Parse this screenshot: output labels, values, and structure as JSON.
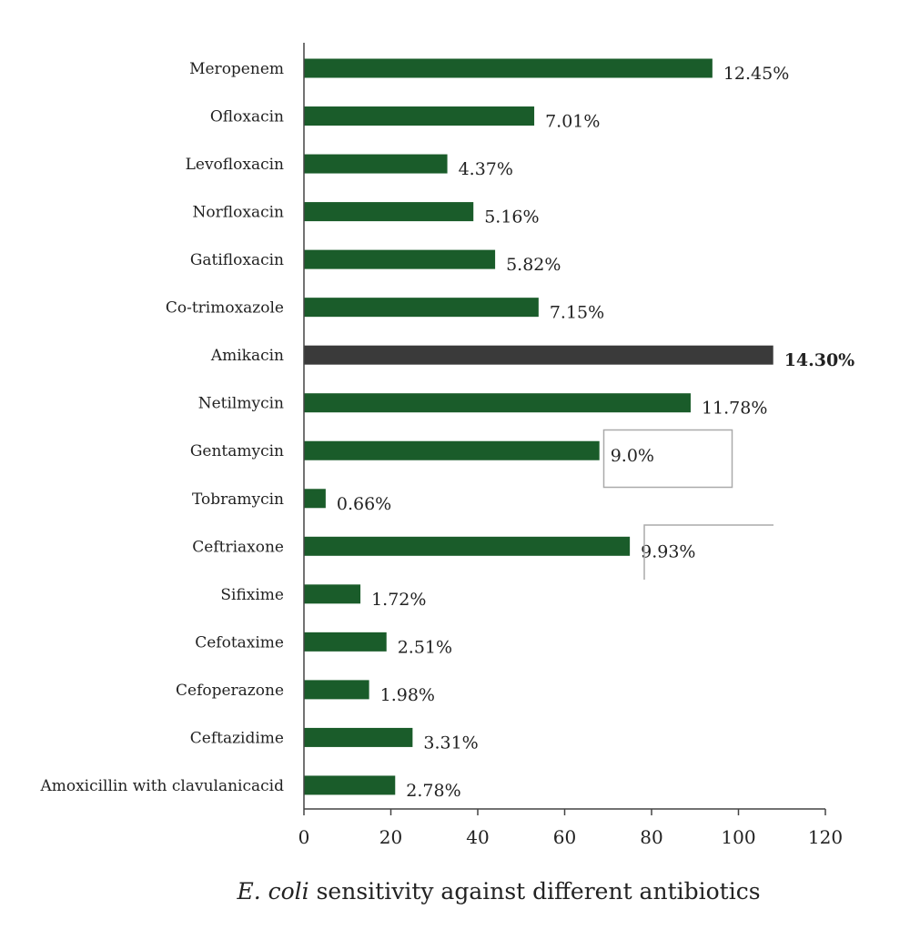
{
  "chart_data": {
    "type": "bar",
    "orientation": "horizontal",
    "title": "",
    "xlabel_italic": "E. coli",
    "xlabel_rest": " sensitivity against different antibiotics",
    "ylabel": "",
    "xlim": [
      0,
      120
    ],
    "xticks": [
      0,
      20,
      40,
      60,
      80,
      100,
      120
    ],
    "grid": false,
    "categories": [
      "Meropenem",
      "Ofloxacin",
      "Levofloxacin",
      "Norfloxacin",
      "Gatifloxacin",
      "Co-trimoxazole",
      "Amikacin",
      "Netilmycin",
      "Gentamycin",
      "Tobramycin",
      "Ceftriaxone",
      "Sifixime",
      "Cefotaxime",
      "Cefoperazone",
      "Ceftazidime",
      "Amoxicillin with clavulanicacid"
    ],
    "values": [
      94,
      53,
      33,
      39,
      44,
      54,
      108,
      89,
      68,
      5,
      75,
      13,
      19,
      15,
      25,
      21
    ],
    "data_labels": [
      "12.45%",
      "7.01%",
      "4.37%",
      "5.16%",
      "5.82%",
      "7.15%",
      "14.30%",
      "11.78%",
      "9.0%",
      "0.66%",
      "9.93%",
      "1.72%",
      "2.51%",
      "1.98%",
      "3.31%",
      "2.78%"
    ],
    "highlight_index": 6,
    "colors": {
      "bar": "#1a5c2a",
      "highlight": "#3a3a3a",
      "axis": "#444444",
      "box": "#aaaaaa"
    }
  }
}
